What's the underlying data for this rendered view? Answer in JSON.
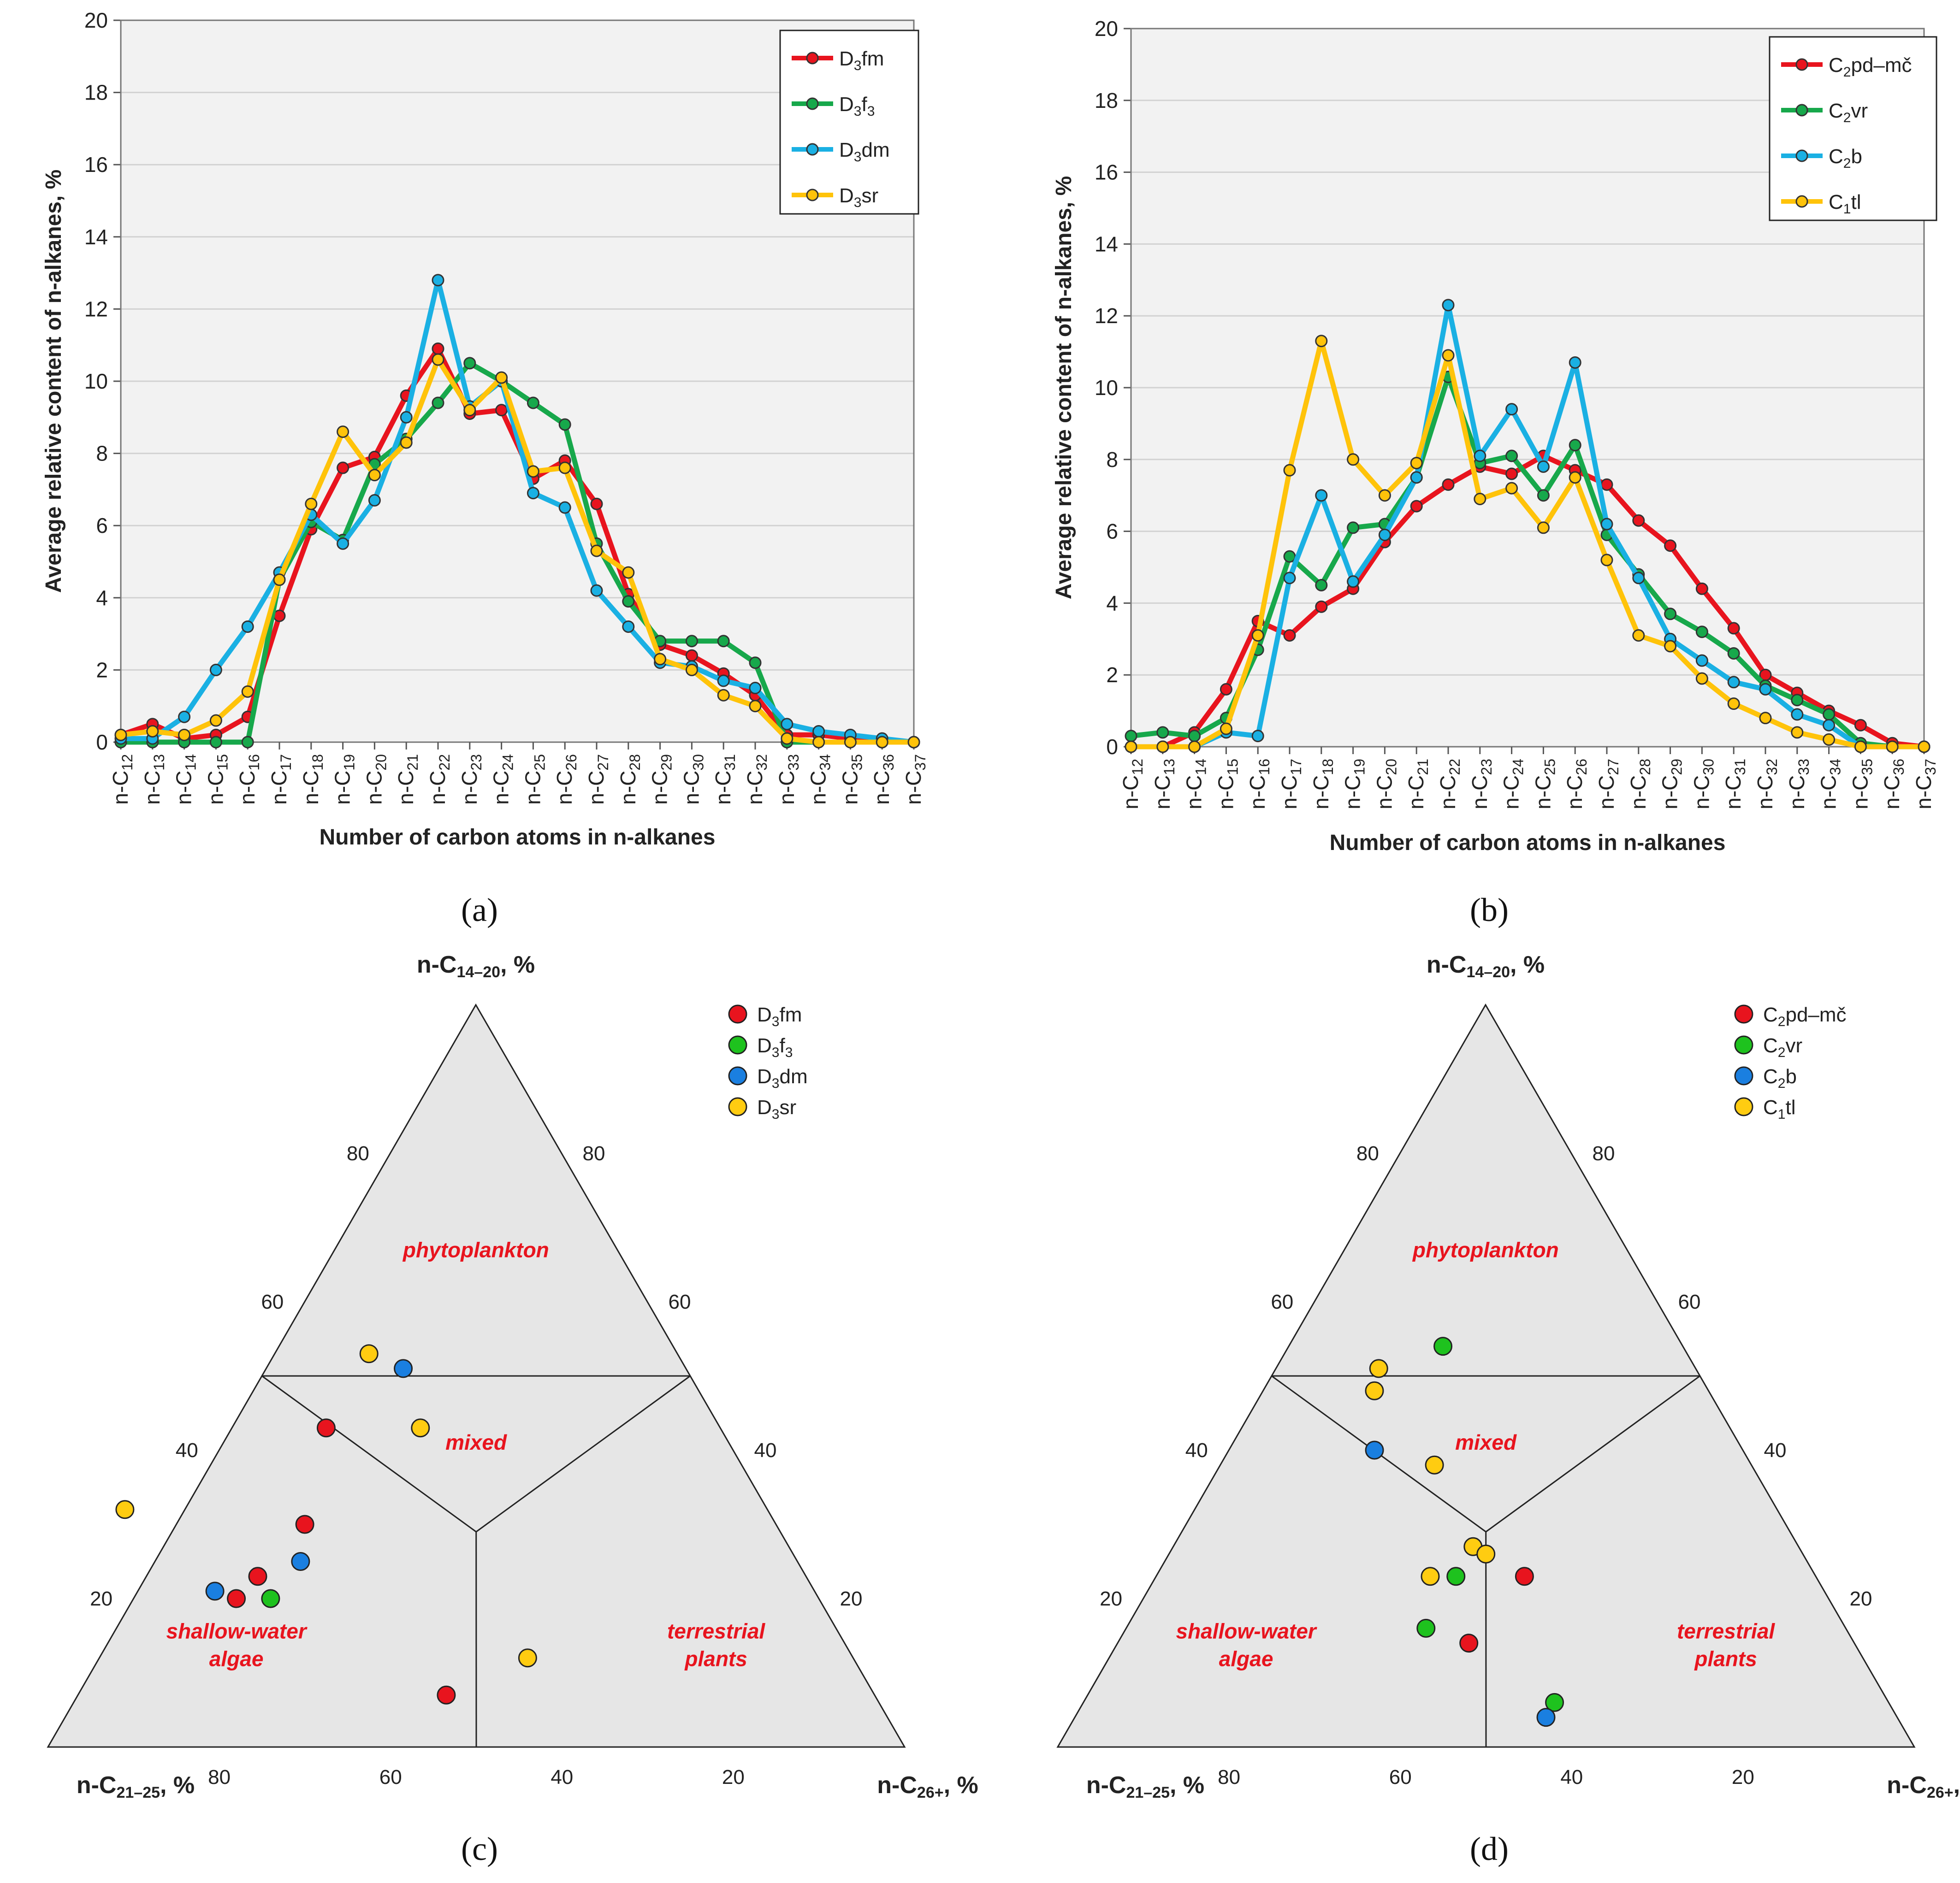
{
  "x_categories": [
    "12",
    "13",
    "14",
    "15",
    "16",
    "17",
    "18",
    "19",
    "20",
    "21",
    "22",
    "23",
    "24",
    "25",
    "26",
    "27",
    "28",
    "29",
    "30",
    "31",
    "32",
    "33",
    "34",
    "35",
    "36",
    "37"
  ],
  "x_label_prefix": "n-C",
  "x_axis_label": "Number of carbon atoms in n-alkanes",
  "y_axis_label": "Average relative content of n-alkanes, %",
  "y_ticks": [
    "0",
    "2",
    "4",
    "6",
    "8",
    "10",
    "12",
    "14",
    "16",
    "18",
    "20"
  ],
  "panel_labels": [
    "(a)",
    "(b)",
    "(c)",
    "(d)"
  ],
  "legend_a": [
    {
      "main": "D",
      "sub": "3",
      "rest": "fm"
    },
    {
      "main": "D",
      "sub": "3",
      "rest": "f",
      "sub2": "3"
    },
    {
      "main": "D",
      "sub": "3",
      "rest": "dm"
    },
    {
      "main": "D",
      "sub": "3",
      "rest": "sr"
    }
  ],
  "legend_b": [
    {
      "main": "C",
      "sub": "2",
      "rest": "pd–mč"
    },
    {
      "main": "C",
      "sub": "2",
      "rest": "vr"
    },
    {
      "main": "C",
      "sub": "2",
      "rest": "b"
    },
    {
      "main": "C",
      "sub": "1",
      "rest": "tl"
    }
  ],
  "colors": {
    "red": "#e8141e",
    "green": "#17a84b",
    "blue": "#1ab0e3",
    "yellow": "#ffc30a",
    "blue_dot": "#1a7fe0",
    "green_dot": "#1ec21e",
    "yellow_dot": "#ffcc11",
    "plot_bg": "#f2f2f2",
    "tri_bg": "#e6e6e6"
  },
  "ternary": {
    "top_label_main": "n-C",
    "top_label_sub": "14–20",
    "top_label_unit": ", %",
    "left_label_main": "n-C",
    "left_label_sub": "21–25",
    "left_label_unit": ", %",
    "right_label_main": "n-C",
    "right_label_sub": "26+",
    "right_label_unit": ", %",
    "left_edge_ticks": [
      "80",
      "60",
      "40",
      "20"
    ],
    "right_edge_ticks": [
      "20",
      "40",
      "60",
      "80"
    ],
    "bottom_ticks": [
      "80",
      "60",
      "40",
      "20"
    ],
    "zones": {
      "phyto": "phytoplankton",
      "mixed": "mixed",
      "shallow1": "shallow-water",
      "shallow2": "algae",
      "terr1": "terrestrial",
      "terr2": "plants"
    }
  },
  "chart_data": [
    {
      "type": "line",
      "panel": "a",
      "ylim": [
        0,
        20
      ],
      "series": [
        {
          "name": "D3fm",
          "values": [
            0.2,
            0.5,
            0.1,
            0.2,
            0.7,
            3.5,
            5.9,
            7.6,
            7.9,
            9.6,
            10.9,
            9.1,
            9.2,
            7.3,
            7.8,
            6.6,
            4.1,
            2.7,
            2.4,
            1.9,
            1.3,
            0.2,
            0.2,
            0.1,
            0,
            0
          ]
        },
        {
          "name": "D3f3",
          "values": [
            0,
            0,
            0,
            0,
            0,
            4.5,
            6.1,
            5.6,
            7.7,
            8.4,
            9.4,
            10.5,
            10,
            9.4,
            8.8,
            5.5,
            3.9,
            2.8,
            2.8,
            2.8,
            2.2,
            0,
            0,
            0,
            0,
            0
          ]
        },
        {
          "name": "D3dm",
          "values": [
            0.1,
            0.1,
            0.7,
            2,
            3.2,
            4.7,
            6.3,
            5.5,
            6.7,
            9,
            12.8,
            9.3,
            10,
            6.9,
            6.5,
            4.2,
            3.2,
            2.2,
            2.1,
            1.7,
            1.5,
            0.5,
            0.3,
            0.2,
            0.1,
            0
          ]
        },
        {
          "name": "D3sr",
          "values": [
            0.2,
            0.3,
            0.2,
            0.6,
            1.4,
            4.5,
            6.6,
            8.6,
            7.4,
            8.3,
            10.6,
            9.2,
            10.1,
            7.5,
            7.6,
            5.3,
            4.7,
            2.3,
            2,
            1.3,
            1,
            0.1,
            0,
            0,
            0,
            0
          ]
        }
      ]
    },
    {
      "type": "line",
      "panel": "b",
      "ylim": [
        0,
        20
      ],
      "series": [
        {
          "name": "C2pd–mč",
          "values": [
            0,
            0,
            0.4,
            1.6,
            3.5,
            3.1,
            3.9,
            4.4,
            5.7,
            6.7,
            7.3,
            7.8,
            7.6,
            8.1,
            7.7,
            7.3,
            6.3,
            5.6,
            4.4,
            3.3,
            2,
            1.5,
            1,
            0.6,
            0.1,
            0
          ]
        },
        {
          "name": "C2vr",
          "values": [
            0.3,
            0.4,
            0.3,
            0.8,
            2.7,
            5.3,
            4.5,
            6.1,
            6.2,
            7.5,
            10.3,
            7.9,
            8.1,
            7,
            8.4,
            5.9,
            4.8,
            3.7,
            3.2,
            2.6,
            1.7,
            1.3,
            0.9,
            0.1,
            0,
            0
          ]
        },
        {
          "name": "C2b",
          "values": [
            0,
            0,
            0,
            0.4,
            0.3,
            4.7,
            7,
            4.6,
            5.9,
            7.5,
            12.3,
            8.1,
            9.4,
            7.8,
            10.7,
            6.2,
            4.7,
            3,
            2.4,
            1.8,
            1.6,
            0.9,
            0.6,
            0,
            0,
            0
          ]
        },
        {
          "name": "C1tl",
          "values": [
            0,
            0,
            0,
            0.5,
            3.1,
            7.7,
            11.3,
            8,
            7,
            7.9,
            10.9,
            6.9,
            7.2,
            6.1,
            7.5,
            5.2,
            3.1,
            2.8,
            1.9,
            1.2,
            0.8,
            0.4,
            0.2,
            0,
            0,
            0
          ]
        }
      ]
    },
    {
      "type": "scatter",
      "panel": "c",
      "axes": [
        "n-C14-20 %",
        "n-C21-25 %",
        "n-C26+ %"
      ],
      "points": [
        {
          "group": "D3fm",
          "top": 43,
          "left": 46
        },
        {
          "group": "D3fm",
          "top": 30,
          "left": 55
        },
        {
          "group": "D3fm",
          "top": 23,
          "left": 64
        },
        {
          "group": "D3fm",
          "top": 20,
          "left": 68
        },
        {
          "group": "D3fm",
          "top": 7,
          "left": 50
        },
        {
          "group": "D3f3",
          "top": 20,
          "left": 64
        },
        {
          "group": "D3dm",
          "top": 51,
          "left": 33
        },
        {
          "group": "D3dm",
          "top": 25,
          "left": 58
        },
        {
          "group": "D3dm",
          "top": 21,
          "left": 70
        },
        {
          "group": "D3sr",
          "top": 53,
          "left": 36
        },
        {
          "group": "D3sr",
          "top": 43,
          "left": 35
        },
        {
          "group": "D3sr",
          "top": 32,
          "left": 75
        },
        {
          "group": "D3sr",
          "top": 12,
          "left": 38
        }
      ]
    },
    {
      "type": "scatter",
      "panel": "d",
      "axes": [
        "n-C14-20 %",
        "n-C21-25 %",
        "n-C26+ %"
      ],
      "points": [
        {
          "group": "C2pd–mč",
          "top": 23,
          "left": 34
        },
        {
          "group": "C2pd–mč",
          "top": 14,
          "left": 45
        },
        {
          "group": "C2vr",
          "top": 54,
          "left": 28
        },
        {
          "group": "C2vr",
          "top": 23,
          "left": 42
        },
        {
          "group": "C2vr",
          "top": 16,
          "left": 49
        },
        {
          "group": "C2vr",
          "top": 6,
          "left": 39
        },
        {
          "group": "C2b",
          "top": 40,
          "left": 43
        },
        {
          "group": "C2b",
          "top": 4,
          "left": 41
        },
        {
          "group": "C1tl",
          "top": 51,
          "left": 37
        },
        {
          "group": "C1tl",
          "top": 48,
          "left": 39
        },
        {
          "group": "C1tl",
          "top": 38,
          "left": 37
        },
        {
          "group": "C1tl",
          "top": 27,
          "left": 38
        },
        {
          "group": "C1tl",
          "top": 26,
          "left": 37
        },
        {
          "group": "C1tl",
          "top": 23,
          "left": 45
        }
      ]
    }
  ]
}
